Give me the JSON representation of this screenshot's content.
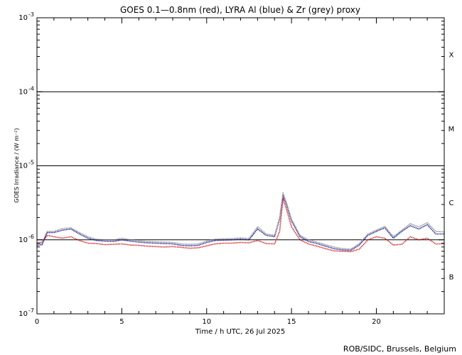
{
  "chart_data": {
    "type": "line",
    "title": "GOES 0.1—0.8nm (red), LYRA Al (blue) & Zr (grey) proxy",
    "xlabel": "Time / h UTC, 26 Jul 2025",
    "ylabel": "GOES Irradiance / (W m⁻²)",
    "xlim": [
      0,
      24
    ],
    "ylim": [
      1e-07,
      0.001
    ],
    "yscale": "log",
    "x_ticks": [
      0,
      5,
      10,
      15,
      20
    ],
    "y_tick_labels": [
      {
        "value": 1e-07,
        "base": "10",
        "exp": "-7"
      },
      {
        "value": 1e-06,
        "base": "10",
        "exp": "-6"
      },
      {
        "value": 1e-05,
        "base": "10",
        "exp": "-5"
      },
      {
        "value": 0.0001,
        "base": "10",
        "exp": "-4"
      },
      {
        "value": 0.001,
        "base": "10",
        "exp": "-3"
      }
    ],
    "reference_lines": [
      1e-06,
      1e-05,
      0.0001
    ],
    "flare_classes": [
      {
        "label": "B",
        "value": 3.2e-07
      },
      {
        "label": "C",
        "value": 3.2e-06
      },
      {
        "label": "M",
        "value": 3.2e-05
      },
      {
        "label": "X",
        "value": 0.00032
      }
    ],
    "series": [
      {
        "color": "#cc0000",
        "points": [
          [
            0,
            9e-07
          ],
          [
            0.3,
            9.3e-07
          ],
          [
            0.6,
            1.15e-06
          ],
          [
            1.0,
            1.1e-06
          ],
          [
            1.5,
            1.05e-06
          ],
          [
            2.0,
            1.1e-06
          ],
          [
            2.5,
            9.8e-07
          ],
          [
            3.0,
            9e-07
          ],
          [
            3.5,
            8.9e-07
          ],
          [
            4.0,
            8.6e-07
          ],
          [
            4.5,
            8.7e-07
          ],
          [
            5.0,
            8.8e-07
          ],
          [
            5.5,
            8.5e-07
          ],
          [
            6.0,
            8.4e-07
          ],
          [
            6.5,
            8.2e-07
          ],
          [
            7.0,
            8.1e-07
          ],
          [
            7.5,
            8e-07
          ],
          [
            8.0,
            8.1e-07
          ],
          [
            8.5,
            7.9e-07
          ],
          [
            9.0,
            7.7e-07
          ],
          [
            9.5,
            7.8e-07
          ],
          [
            10.0,
            8.3e-07
          ],
          [
            10.5,
            8.8e-07
          ],
          [
            11.0,
            9e-07
          ],
          [
            11.5,
            9e-07
          ],
          [
            12.0,
            9.2e-07
          ],
          [
            12.5,
            9.1e-07
          ],
          [
            13.0,
            9.8e-07
          ],
          [
            13.5,
            8.9e-07
          ],
          [
            14.0,
            8.8e-07
          ],
          [
            14.3,
            1.3e-06
          ],
          [
            14.5,
            3.6e-06
          ],
          [
            14.7,
            2.6e-06
          ],
          [
            15.0,
            1.5e-06
          ],
          [
            15.5,
            1e-06
          ],
          [
            16.0,
            8.8e-07
          ],
          [
            16.5,
            8.2e-07
          ],
          [
            17.0,
            7.6e-07
          ],
          [
            17.5,
            7.1e-07
          ],
          [
            18.0,
            7e-07
          ],
          [
            18.5,
            6.9e-07
          ],
          [
            19.0,
            7.5e-07
          ],
          [
            19.5,
            1e-06
          ],
          [
            20.0,
            1.1e-06
          ],
          [
            20.5,
            1.05e-06
          ],
          [
            21.0,
            8.5e-07
          ],
          [
            21.5,
            8.7e-07
          ],
          [
            22.0,
            1.1e-06
          ],
          [
            22.5,
            1e-06
          ],
          [
            23.0,
            1.05e-06
          ],
          [
            23.5,
            8.8e-07
          ],
          [
            24.0,
            8.8e-07
          ]
        ]
      },
      {
        "color": "#00008b",
        "points": [
          [
            0,
            8.4e-07
          ],
          [
            0.3,
            8.6e-07
          ],
          [
            0.6,
            1.25e-06
          ],
          [
            1.0,
            1.25e-06
          ],
          [
            1.5,
            1.35e-06
          ],
          [
            2.0,
            1.4e-06
          ],
          [
            2.5,
            1.2e-06
          ],
          [
            3.0,
            1.05e-06
          ],
          [
            3.5,
            9.8e-07
          ],
          [
            4.0,
            9.6e-07
          ],
          [
            4.5,
            9.5e-07
          ],
          [
            5.0,
            1e-06
          ],
          [
            5.5,
            9.6e-07
          ],
          [
            6.0,
            9.3e-07
          ],
          [
            6.5,
            9.1e-07
          ],
          [
            7.0,
            9e-07
          ],
          [
            7.5,
            8.9e-07
          ],
          [
            8.0,
            8.8e-07
          ],
          [
            8.5,
            8.4e-07
          ],
          [
            9.0,
            8.3e-07
          ],
          [
            9.5,
            8.4e-07
          ],
          [
            10.0,
            9.2e-07
          ],
          [
            10.5,
            9.8e-07
          ],
          [
            11.0,
            9.9e-07
          ],
          [
            11.5,
            1e-06
          ],
          [
            12.0,
            1.02e-06
          ],
          [
            12.5,
            1e-06
          ],
          [
            13.0,
            1.4e-06
          ],
          [
            13.5,
            1.15e-06
          ],
          [
            14.0,
            1.1e-06
          ],
          [
            14.3,
            1.9e-06
          ],
          [
            14.5,
            4e-06
          ],
          [
            14.7,
            3e-06
          ],
          [
            15.0,
            1.8e-06
          ],
          [
            15.5,
            1.1e-06
          ],
          [
            16.0,
            9.5e-07
          ],
          [
            16.5,
            8.9e-07
          ],
          [
            17.0,
            8.2e-07
          ],
          [
            17.5,
            7.6e-07
          ],
          [
            18.0,
            7.3e-07
          ],
          [
            18.5,
            7.2e-07
          ],
          [
            19.0,
            8.5e-07
          ],
          [
            19.5,
            1.15e-06
          ],
          [
            20.0,
            1.3e-06
          ],
          [
            20.5,
            1.45e-06
          ],
          [
            21.0,
            1.05e-06
          ],
          [
            21.5,
            1.3e-06
          ],
          [
            22.0,
            1.55e-06
          ],
          [
            22.5,
            1.4e-06
          ],
          [
            23.0,
            1.6e-06
          ],
          [
            23.5,
            1.2e-06
          ],
          [
            24.0,
            1.2e-06
          ]
        ]
      },
      {
        "color": "#808080",
        "points": [
          [
            0,
            8.7e-07
          ],
          [
            0.3,
            8.9e-07
          ],
          [
            0.6,
            1.3e-06
          ],
          [
            1.0,
            1.3e-06
          ],
          [
            1.5,
            1.42e-06
          ],
          [
            2.0,
            1.45e-06
          ],
          [
            2.5,
            1.25e-06
          ],
          [
            3.0,
            1.1e-06
          ],
          [
            3.5,
            1.02e-06
          ],
          [
            4.0,
            1e-06
          ],
          [
            4.5,
            9.9e-07
          ],
          [
            5.0,
            1.05e-06
          ],
          [
            5.5,
            1e-06
          ],
          [
            6.0,
            9.7e-07
          ],
          [
            6.5,
            9.5e-07
          ],
          [
            7.0,
            9.4e-07
          ],
          [
            7.5,
            9.3e-07
          ],
          [
            8.0,
            9.2e-07
          ],
          [
            8.5,
            8.8e-07
          ],
          [
            9.0,
            8.7e-07
          ],
          [
            9.5,
            8.8e-07
          ],
          [
            10.0,
            9.6e-07
          ],
          [
            10.5,
            1.02e-06
          ],
          [
            11.0,
            1.03e-06
          ],
          [
            11.5,
            1.04e-06
          ],
          [
            12.0,
            1.06e-06
          ],
          [
            12.5,
            1.04e-06
          ],
          [
            13.0,
            1.5e-06
          ],
          [
            13.5,
            1.2e-06
          ],
          [
            14.0,
            1.15e-06
          ],
          [
            14.3,
            2e-06
          ],
          [
            14.5,
            4.3e-06
          ],
          [
            14.7,
            3.2e-06
          ],
          [
            15.0,
            1.9e-06
          ],
          [
            15.5,
            1.15e-06
          ],
          [
            16.0,
            1e-06
          ],
          [
            16.5,
            9.3e-07
          ],
          [
            17.0,
            8.6e-07
          ],
          [
            17.5,
            8e-07
          ],
          [
            18.0,
            7.6e-07
          ],
          [
            18.5,
            7.5e-07
          ],
          [
            19.0,
            8.9e-07
          ],
          [
            19.5,
            1.2e-06
          ],
          [
            20.0,
            1.35e-06
          ],
          [
            20.5,
            1.52e-06
          ],
          [
            21.0,
            1.1e-06
          ],
          [
            21.5,
            1.35e-06
          ],
          [
            22.0,
            1.65e-06
          ],
          [
            22.5,
            1.5e-06
          ],
          [
            23.0,
            1.7e-06
          ],
          [
            23.5,
            1.3e-06
          ],
          [
            24.0,
            1.28e-06
          ]
        ]
      }
    ]
  },
  "footer": "ROB/SIDC, Brussels, Belgium"
}
